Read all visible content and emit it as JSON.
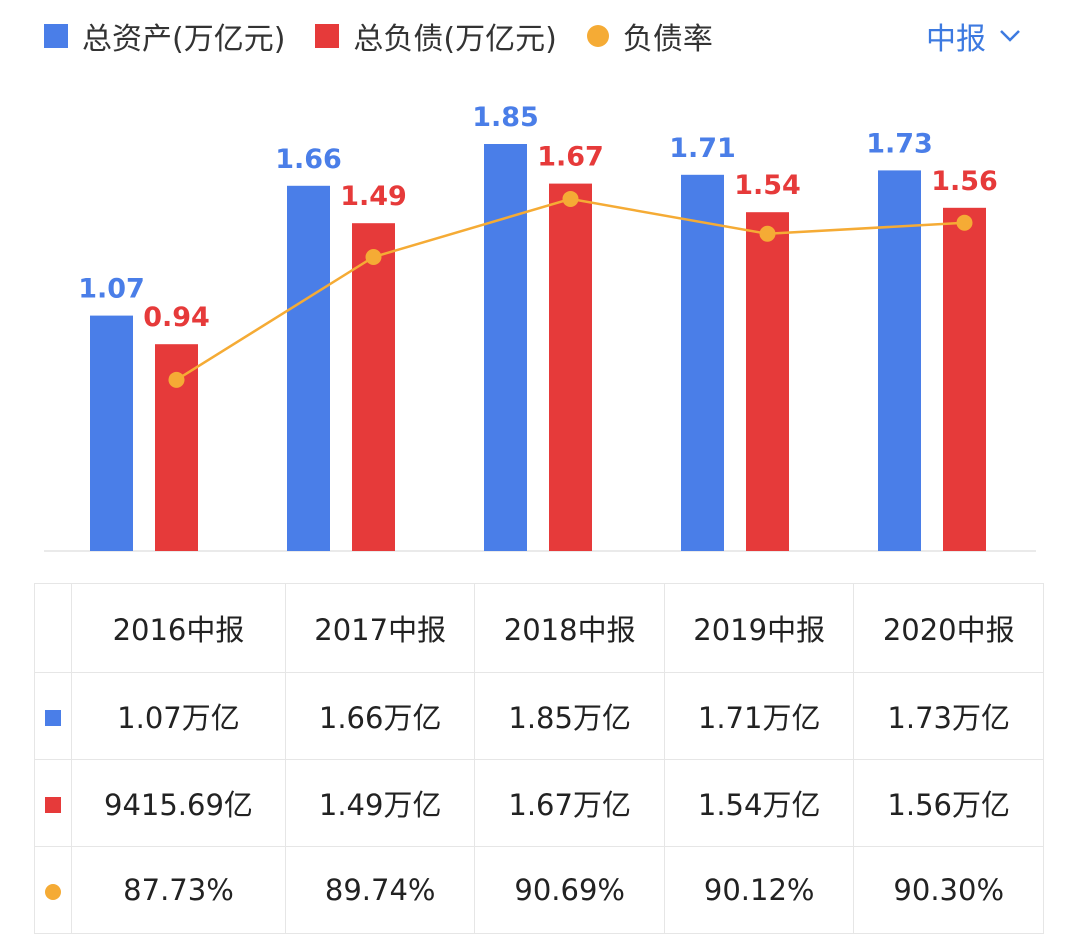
{
  "legend": {
    "assets_label": "总资产(万亿元)",
    "liabilities_label": "总负债(万亿元)",
    "ratio_label": "负债率"
  },
  "period_selector": {
    "label": "中报"
  },
  "colors": {
    "assets": "#4a7ee8",
    "liabilities": "#e63a3a",
    "ratio": "#f5ab35",
    "selector": "#3d7ae0"
  },
  "chart_data": {
    "type": "bar",
    "categories": [
      "2016中报",
      "2017中报",
      "2018中报",
      "2019中报",
      "2020中报"
    ],
    "series": [
      {
        "name": "总资产(万亿元)",
        "type": "bar",
        "values": [
          1.07,
          1.66,
          1.85,
          1.71,
          1.73
        ]
      },
      {
        "name": "总负债(万亿元)",
        "type": "bar",
        "values": [
          0.94,
          1.49,
          1.67,
          1.54,
          1.56
        ]
      },
      {
        "name": "负债率",
        "type": "line",
        "values": [
          87.73,
          89.74,
          90.69,
          90.12,
          90.3
        ]
      }
    ],
    "value_labels": {
      "assets": [
        "1.07",
        "1.66",
        "1.85",
        "1.71",
        "1.73"
      ],
      "liabilities": [
        "0.94",
        "1.49",
        "1.67",
        "1.54",
        "1.56"
      ]
    },
    "ylim": [
      0,
      2.0
    ],
    "ratio_ylim": [
      86.5,
      91.0
    ],
    "grid": false,
    "legend_position": "top-left"
  },
  "table": {
    "headers": [
      "2016中报",
      "2017中报",
      "2018中报",
      "2019中报",
      "2020中报"
    ],
    "rows": [
      {
        "series": "assets",
        "cells": [
          "1.07万亿",
          "1.66万亿",
          "1.85万亿",
          "1.71万亿",
          "1.73万亿"
        ]
      },
      {
        "series": "liabilities",
        "cells": [
          "9415.69亿",
          "1.49万亿",
          "1.67万亿",
          "1.54万亿",
          "1.56万亿"
        ]
      },
      {
        "series": "ratio",
        "cells": [
          "87.73%",
          "89.74%",
          "90.69%",
          "90.12%",
          "90.30%"
        ]
      }
    ]
  }
}
